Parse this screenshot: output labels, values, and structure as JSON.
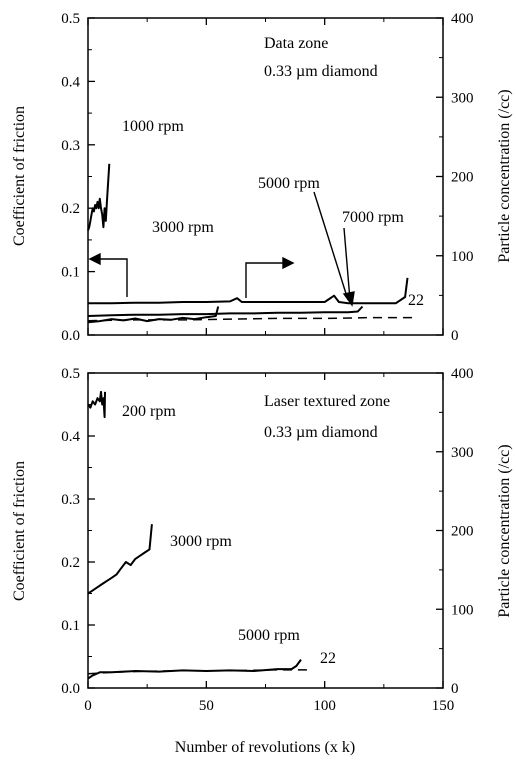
{
  "chart_data": [
    {
      "type": "line",
      "title": "",
      "xlabel": "",
      "ylabel": "Coefficient of friction",
      "y2label": "Particle concentration (/cc)",
      "xlim": [
        0,
        150
      ],
      "ylim": [
        0,
        0.5
      ],
      "y2lim": [
        0,
        400
      ],
      "x_ticks": [
        "0",
        "50",
        "100",
        "150"
      ],
      "y_ticks": [
        "0.0",
        "0.1",
        "0.2",
        "0.3",
        "0.4",
        "0.5"
      ],
      "y2_ticks": [
        "0",
        "100",
        "200",
        "300",
        "400"
      ],
      "annotations": [
        "Data zone",
        "0.33 µm diamond",
        "1000 rpm",
        "3000 rpm",
        "5000 rpm",
        "7000 rpm",
        "22"
      ],
      "series": [
        {
          "label": "1000 rpm",
          "style": "solid",
          "x": [
            0,
            0.5,
            1,
            1.5,
            2,
            2.5,
            3,
            3.5,
            4,
            4.5,
            5,
            5.5,
            6,
            6.5,
            7,
            7.5,
            8,
            8.5,
            9
          ],
          "y": [
            0.165,
            0.17,
            0.18,
            0.19,
            0.2,
            0.195,
            0.205,
            0.2,
            0.21,
            0.2,
            0.215,
            0.2,
            0.19,
            0.17,
            0.2,
            0.18,
            0.21,
            0.24,
            0.27
          ]
        },
        {
          "label": "3000 rpm",
          "style": "solid",
          "x": [
            0,
            5,
            10,
            15,
            20,
            25,
            30,
            35,
            40,
            45,
            50,
            54,
            55
          ],
          "y": [
            0.02,
            0.022,
            0.025,
            0.023,
            0.026,
            0.022,
            0.025,
            0.024,
            0.027,
            0.025,
            0.028,
            0.03,
            0.045
          ]
        },
        {
          "label": "5000 rpm",
          "style": "solid",
          "x": [
            0,
            10,
            20,
            30,
            40,
            50,
            60,
            70,
            80,
            90,
            100,
            110,
            114,
            116
          ],
          "y": [
            0.03,
            0.031,
            0.032,
            0.032,
            0.033,
            0.033,
            0.034,
            0.034,
            0.035,
            0.035,
            0.036,
            0.036,
            0.037,
            0.045
          ]
        },
        {
          "label": "7000 rpm",
          "style": "solid",
          "x": [
            0,
            10,
            20,
            30,
            40,
            50,
            60,
            63,
            65,
            70,
            80,
            90,
            100,
            104,
            106,
            110,
            120,
            130,
            134,
            135
          ],
          "y": [
            0.05,
            0.05,
            0.051,
            0.051,
            0.052,
            0.052,
            0.053,
            0.058,
            0.052,
            0.052,
            0.052,
            0.052,
            0.052,
            0.062,
            0.052,
            0.05,
            0.05,
            0.05,
            0.06,
            0.09
          ]
        },
        {
          "label": "22",
          "style": "dashed",
          "x": [
            0,
            20,
            40,
            60,
            80,
            100,
            120,
            137
          ],
          "y": [
            18,
            19,
            19,
            20,
            21,
            21,
            22,
            22
          ],
          "axis": "right"
        }
      ]
    },
    {
      "type": "line",
      "title": "",
      "xlabel": "Number of revolutions (x k)",
      "ylabel": "Coefficient of friction",
      "y2label": "Particle concentration (/cc)",
      "xlim": [
        0,
        150
      ],
      "ylim": [
        0,
        0.5
      ],
      "y2lim": [
        0,
        400
      ],
      "x_ticks": [
        "0",
        "50",
        "100",
        "150"
      ],
      "y_ticks": [
        "0.0",
        "0.1",
        "0.2",
        "0.3",
        "0.4",
        "0.5"
      ],
      "y2_ticks": [
        "0",
        "100",
        "200",
        "300",
        "400"
      ],
      "annotations": [
        "Laser textured zone",
        "0.33 µm diamond",
        "200 rpm",
        "3000 rpm",
        "5000 rpm",
        "22"
      ],
      "series": [
        {
          "label": "200 rpm",
          "style": "solid",
          "x": [
            0,
            1,
            2,
            3,
            4,
            5,
            5.5,
            6,
            6.5,
            7,
            7.2
          ],
          "y": [
            0.45,
            0.445,
            0.455,
            0.45,
            0.46,
            0.455,
            0.47,
            0.45,
            0.46,
            0.43,
            0.47
          ]
        },
        {
          "label": "3000 rpm",
          "style": "solid",
          "x": [
            0,
            2,
            4,
            6,
            8,
            10,
            12,
            14,
            16,
            18,
            20,
            22,
            24,
            26,
            27
          ],
          "y": [
            0.15,
            0.155,
            0.16,
            0.165,
            0.17,
            0.175,
            0.18,
            0.19,
            0.2,
            0.195,
            0.205,
            0.21,
            0.215,
            0.22,
            0.26
          ]
        },
        {
          "label": "5000 rpm",
          "style": "solid",
          "x": [
            0,
            2,
            5,
            10,
            20,
            30,
            40,
            50,
            60,
            70,
            80,
            86,
            88,
            90
          ],
          "y": [
            0.015,
            0.02,
            0.025,
            0.025,
            0.027,
            0.026,
            0.028,
            0.027,
            0.028,
            0.027,
            0.03,
            0.03,
            0.035,
            0.045
          ]
        },
        {
          "label": "22",
          "style": "dashed",
          "x": [
            0,
            10,
            20,
            40,
            60,
            80,
            94
          ],
          "y": [
            18,
            20,
            21,
            22,
            22,
            23,
            23
          ],
          "axis": "right"
        }
      ]
    }
  ]
}
